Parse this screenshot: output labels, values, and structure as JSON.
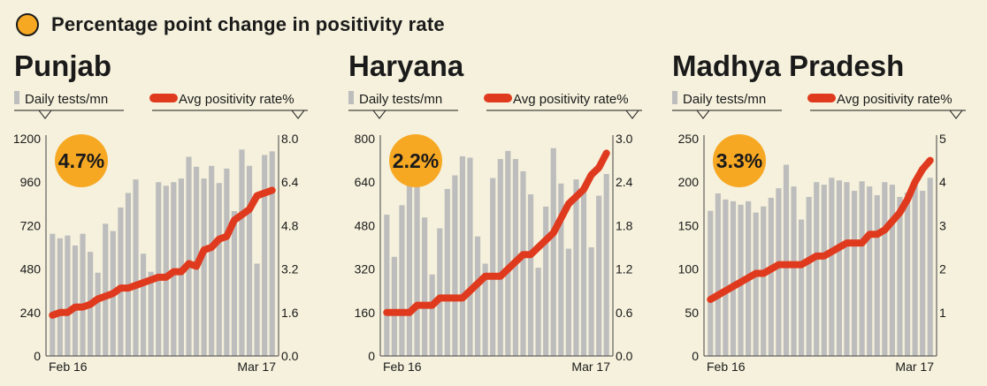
{
  "header": {
    "title": "Percentage point change in positivity rate"
  },
  "colors": {
    "bar": "#bdbdbd",
    "line": "#e03a1e",
    "badge": "#f7a823",
    "background": "#f5f1dc",
    "text": "#1a1a1a"
  },
  "chart_data": [
    {
      "type": "bar+line",
      "title": "Punjab",
      "badge": "4.7%",
      "legend": {
        "bars": "Daily tests/mn",
        "line": "Avg positivity rate%"
      },
      "x_start_label": "Feb 16",
      "x_end_label": "Mar 17",
      "left_axis": {
        "min": 0,
        "max": 1200,
        "ticks": [
          "0",
          "240",
          "480",
          "720",
          "960",
          "1200"
        ]
      },
      "right_axis": {
        "min": 0,
        "max": 8,
        "ticks": [
          "0.0",
          "1.6",
          "3.2",
          "4.8",
          "6.4",
          "8.0"
        ]
      },
      "series": [
        {
          "name": "Daily tests/mn",
          "kind": "bar",
          "axis": "left",
          "values": [
            675,
            650,
            665,
            610,
            675,
            575,
            460,
            730,
            690,
            820,
            900,
            975,
            565,
            465,
            960,
            940,
            960,
            980,
            1100,
            1045,
            980,
            1050,
            955,
            1035,
            800,
            1140,
            1050,
            510,
            1110,
            1130
          ]
        },
        {
          "name": "Avg positivity rate%",
          "kind": "line",
          "axis": "right",
          "values": [
            1.5,
            1.6,
            1.6,
            1.8,
            1.8,
            1.9,
            2.1,
            2.2,
            2.3,
            2.5,
            2.5,
            2.6,
            2.7,
            2.8,
            2.9,
            2.9,
            3.1,
            3.1,
            3.4,
            3.3,
            3.9,
            4.0,
            4.3,
            4.4,
            5.0,
            5.2,
            5.4,
            5.9,
            6.0,
            6.1
          ]
        }
      ]
    },
    {
      "type": "bar+line",
      "title": "Haryana",
      "badge": "2.2%",
      "legend": {
        "bars": "Daily tests/mn",
        "line": "Avg positivity rate%"
      },
      "x_start_label": "Feb 16",
      "x_end_label": "Mar 17",
      "left_axis": {
        "min": 0,
        "max": 800,
        "ticks": [
          "0",
          "160",
          "320",
          "480",
          "640",
          "800"
        ]
      },
      "right_axis": {
        "min": 0,
        "max": 3,
        "ticks": [
          "0.0",
          "0.6",
          "1.2",
          "1.8",
          "2.4",
          "3.0"
        ]
      },
      "series": [
        {
          "name": "Daily tests/mn",
          "kind": "bar",
          "axis": "left",
          "values": [
            520,
            365,
            555,
            635,
            640,
            510,
            300,
            470,
            615,
            665,
            735,
            730,
            440,
            340,
            655,
            725,
            755,
            725,
            680,
            595,
            325,
            550,
            765,
            635,
            395,
            650,
            625,
            400,
            590,
            670
          ]
        },
        {
          "name": "Avg positivity rate%",
          "kind": "line",
          "axis": "right",
          "values": [
            0.6,
            0.6,
            0.6,
            0.6,
            0.7,
            0.7,
            0.7,
            0.8,
            0.8,
            0.8,
            0.8,
            0.9,
            1.0,
            1.1,
            1.1,
            1.1,
            1.2,
            1.3,
            1.4,
            1.4,
            1.5,
            1.6,
            1.7,
            1.9,
            2.1,
            2.2,
            2.3,
            2.5,
            2.6,
            2.8
          ]
        }
      ]
    },
    {
      "type": "bar+line",
      "title": "Madhya Pradesh",
      "badge": "3.3%",
      "legend": {
        "bars": "Daily tests/mn",
        "line": "Avg positivity rate%"
      },
      "x_start_label": "Feb 16",
      "x_end_label": "Mar 17",
      "left_axis": {
        "min": 0,
        "max": 250,
        "ticks": [
          "0",
          "50",
          "100",
          "150",
          "200",
          "250"
        ]
      },
      "right_axis": {
        "min": 0,
        "max": 5,
        "ticks": [
          "",
          "1",
          "2",
          "3",
          "4",
          "5"
        ]
      },
      "series": [
        {
          "name": "Daily tests/mn",
          "kind": "bar",
          "axis": "left",
          "values": [
            167,
            187,
            180,
            178,
            174,
            178,
            165,
            172,
            182,
            193,
            220,
            195,
            157,
            183,
            200,
            197,
            205,
            202,
            200,
            190,
            201,
            195,
            185,
            200,
            197,
            183,
            188,
            200,
            190,
            205
          ]
        },
        {
          "name": "Avg positivity rate%",
          "kind": "line",
          "axis": "right",
          "values": [
            1.3,
            1.4,
            1.5,
            1.6,
            1.7,
            1.8,
            1.9,
            1.9,
            2.0,
            2.1,
            2.1,
            2.1,
            2.1,
            2.2,
            2.3,
            2.3,
            2.4,
            2.5,
            2.6,
            2.6,
            2.6,
            2.8,
            2.8,
            2.9,
            3.1,
            3.3,
            3.6,
            4.0,
            4.3,
            4.5
          ]
        }
      ]
    }
  ]
}
